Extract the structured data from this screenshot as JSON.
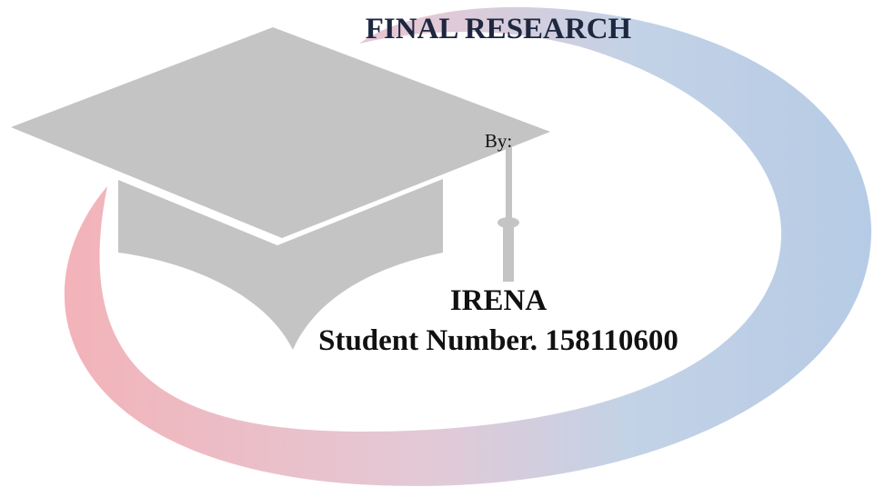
{
  "title": "FINAL RESEARCH",
  "by_label": "By:",
  "author": {
    "name": "IRENA",
    "student_number": "Student Number. 158110600"
  }
}
